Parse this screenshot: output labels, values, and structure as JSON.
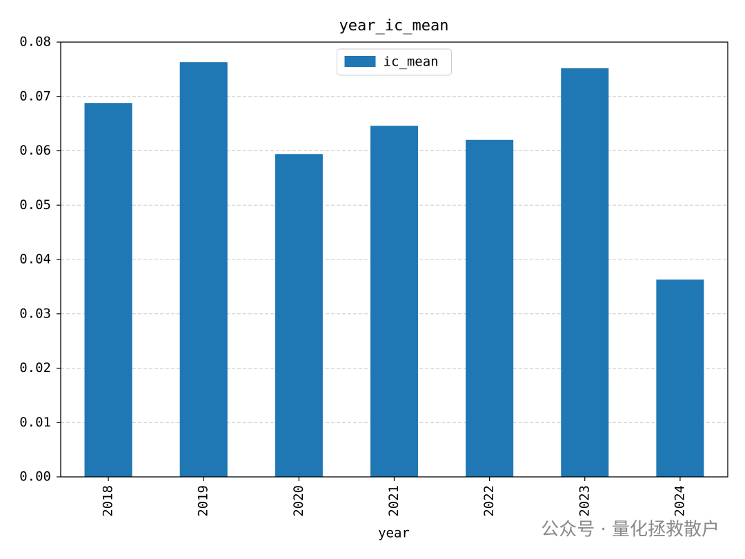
{
  "chart_data": {
    "type": "bar",
    "title": "year_ic_mean",
    "x_label": "year",
    "categories": [
      "2018",
      "2019",
      "2020",
      "2021",
      "2022",
      "2023",
      "2024"
    ],
    "series": [
      {
        "name": "ic_mean",
        "color": "#1f77b4",
        "values": [
          0.0688,
          0.0763,
          0.0594,
          0.0646,
          0.062,
          0.0752,
          0.0363
        ]
      }
    ],
    "ylim": [
      0,
      0.08
    ],
    "yticks": [
      {
        "value": 0,
        "label": "0.00"
      },
      {
        "value": 0.01,
        "label": "0.01"
      },
      {
        "value": 0.02,
        "label": "0.02"
      },
      {
        "value": 0.03,
        "label": "0.03"
      },
      {
        "value": 0.04,
        "label": "0.04"
      },
      {
        "value": 0.05,
        "label": "0.05"
      },
      {
        "value": 0.06,
        "label": "0.06"
      },
      {
        "value": 0.07,
        "label": "0.07"
      },
      {
        "value": 0.08,
        "label": "0.08"
      }
    ],
    "grid": true,
    "legend": "upper center"
  },
  "watermark": "公众号 · 量化拯救散户"
}
